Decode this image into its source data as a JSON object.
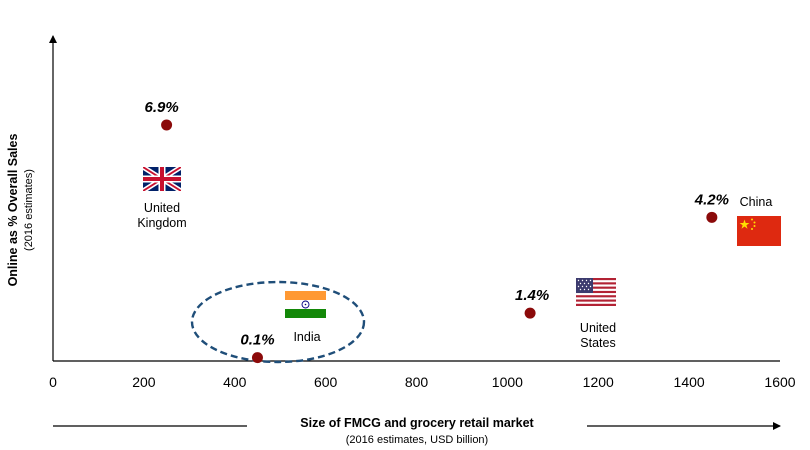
{
  "chart_data": {
    "type": "scatter",
    "title": "",
    "xlabel": "Size of FMCG and grocery retail market",
    "xlabel_sub": "(2016 estimates, USD billion)",
    "ylabel": "Online as % Overall Sales",
    "ylabel_sub": "(2016 estimates)",
    "xlim": [
      0,
      1600
    ],
    "ylim": [
      0,
      9.5
    ],
    "x_ticks": [
      "0",
      "200",
      "400",
      "600",
      "800",
      "1000",
      "1200",
      "1400",
      "1600"
    ],
    "y_ticks_shown": false,
    "grid": false,
    "legend": "none",
    "marker_color": "#8b0a0a",
    "ellipse_color": "#1f4e79",
    "points": [
      {
        "country": "United Kingdom",
        "country_lines": [
          "United",
          "Kingdom"
        ],
        "flag": "uk-flag",
        "x": 250,
        "y": 6.9,
        "label": "6.9%"
      },
      {
        "country": "India",
        "country_lines": [
          "India"
        ],
        "flag": "india-flag",
        "x": 450,
        "y": 0.1,
        "label": "0.1%",
        "highlighted": true
      },
      {
        "country": "United States",
        "country_lines": [
          "United",
          "States"
        ],
        "flag": "us-flag",
        "x": 1050,
        "y": 1.4,
        "label": "1.4%"
      },
      {
        "country": "China",
        "country_lines": [
          "China"
        ],
        "flag": "china-flag",
        "x": 1450,
        "y": 4.2,
        "label": "4.2%"
      }
    ]
  }
}
